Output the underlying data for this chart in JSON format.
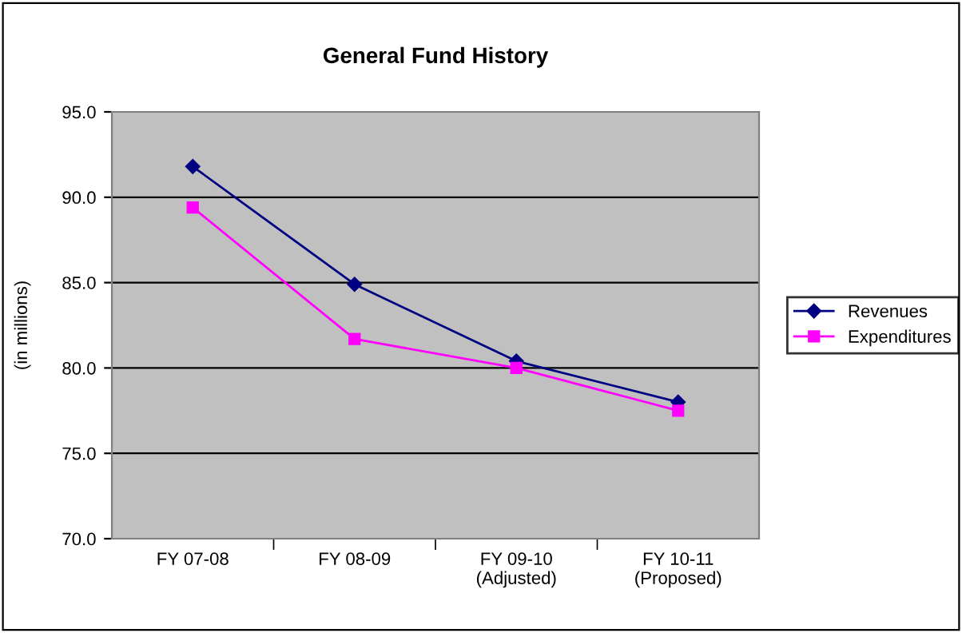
{
  "chart_data": {
    "type": "line",
    "title": "General Fund History",
    "ylabel": "(in millions)",
    "categories": [
      "FY 07-08",
      "FY 08-09",
      "FY 09-10\n(Adjusted)",
      "FY 10-11\n(Proposed)"
    ],
    "series": [
      {
        "name": "Revenues",
        "color": "#000080",
        "marker": "diamond",
        "values": [
          91.8,
          84.9,
          80.4,
          78.0
        ]
      },
      {
        "name": "Expenditures",
        "color": "#ff00ff",
        "marker": "square",
        "values": [
          89.4,
          81.7,
          80.0,
          77.5
        ]
      }
    ],
    "ylim": [
      70,
      95
    ],
    "yticks": [
      {
        "value": 70,
        "label": "70.0"
      },
      {
        "value": 75,
        "label": "75.0"
      },
      {
        "value": 80,
        "label": "80.0"
      },
      {
        "value": 85,
        "label": "85.0"
      },
      {
        "value": 90,
        "label": "90.0"
      },
      {
        "value": 95,
        "label": "95.0"
      }
    ],
    "grid": "y",
    "legend": "right",
    "line_style": "solid"
  }
}
